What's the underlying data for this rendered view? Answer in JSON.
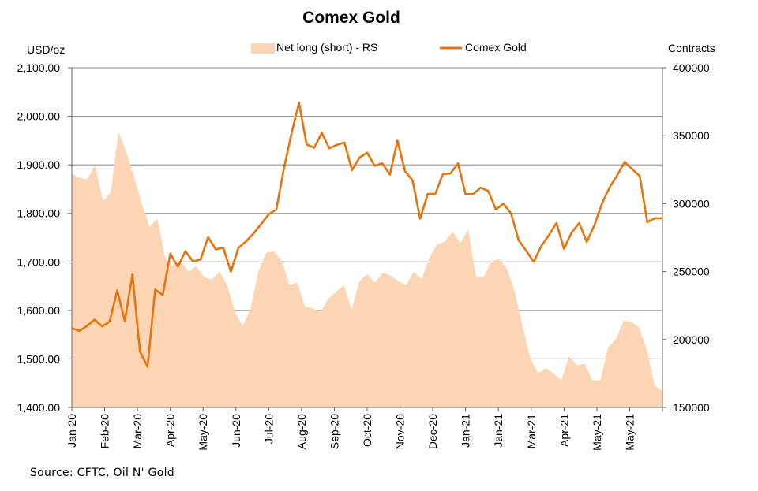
{
  "chart_data": {
    "type": "line",
    "title": "Comex Gold",
    "y_left_label": "USD/oz",
    "y_right_label": "Contracts",
    "y_left_lim": [
      1400,
      2100
    ],
    "y_left_ticks": [
      "1,400.00",
      "1,500.00",
      "1,600.00",
      "1,700.00",
      "1,800.00",
      "1,900.00",
      "2,000.00",
      "2,100.00"
    ],
    "y_right_lim": [
      150000,
      400000
    ],
    "y_right_ticks": [
      "150000",
      "200000",
      "250000",
      "300000",
      "350000",
      "400000"
    ],
    "x_tick_labels": [
      "Jan-20",
      "Feb-20",
      "Mar-20",
      "Apr-20",
      "May-20",
      "Jun-20",
      "Jul-20",
      "Aug-20",
      "Sep-20",
      "Oct-20",
      "Nov-20",
      "Dec-20",
      "Jan-21",
      "Jan-21",
      "Mar-21",
      "Apr-21",
      "May-21",
      "May-21"
    ],
    "grid": "horizontal",
    "legend_position": "top",
    "series": [
      {
        "name": "Net long (short) - RS",
        "kind": "area",
        "axis": "right",
        "color": "#fcd5b5",
        "values": [
          322000,
          319000,
          318000,
          328000,
          302000,
          308000,
          353000,
          338000,
          320000,
          300000,
          283000,
          289000,
          260000,
          254000,
          258000,
          250000,
          254000,
          246000,
          244000,
          250000,
          240000,
          220000,
          210000,
          223000,
          250000,
          264000,
          265000,
          258000,
          240000,
          242000,
          224000,
          223000,
          220000,
          230000,
          235000,
          240000,
          222000,
          243000,
          248000,
          242000,
          249000,
          247000,
          243000,
          240000,
          250000,
          244000,
          260000,
          270000,
          272000,
          279000,
          271000,
          281000,
          246000,
          246000,
          258000,
          259000,
          252000,
          235000,
          210000,
          186000,
          175000,
          179000,
          175000,
          170000,
          188000,
          181000,
          182000,
          170000,
          170000,
          194000,
          200000,
          214000,
          213000,
          209000,
          192000,
          166000,
          162000
        ]
      },
      {
        "name": "Comex Gold",
        "kind": "line",
        "axis": "left",
        "color": "#e8730c",
        "values": [
          1563,
          1558,
          1568,
          1581,
          1567,
          1577,
          1641,
          1578,
          1674,
          1515,
          1484,
          1643,
          1632,
          1717,
          1690,
          1722,
          1701,
          1705,
          1751,
          1726,
          1729,
          1680,
          1729,
          1742,
          1759,
          1778,
          1798,
          1808,
          1892,
          1964,
          2028,
          1942,
          1935,
          1966,
          1934,
          1941,
          1946,
          1889,
          1915,
          1925,
          1898,
          1903,
          1880,
          1950,
          1887,
          1868,
          1789,
          1840,
          1840,
          1881,
          1882,
          1903,
          1839,
          1840,
          1853,
          1846,
          1808,
          1820,
          1800,
          1745,
          1723,
          1700,
          1733,
          1755,
          1780,
          1727,
          1760,
          1780,
          1741,
          1775,
          1820,
          1853,
          1878,
          1906,
          1891,
          1877,
          1782,
          1790,
          1790
        ]
      }
    ],
    "source": "Source: CFTC, Oil N' Gold"
  }
}
